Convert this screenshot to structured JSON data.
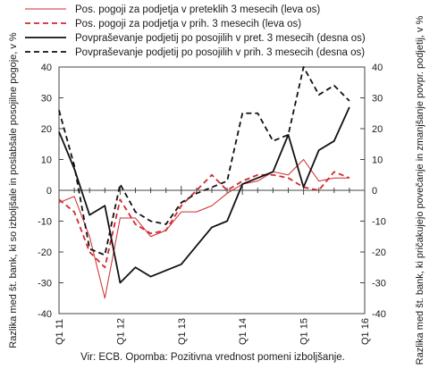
{
  "chart_data": {
    "type": "line",
    "title": "",
    "x": [
      "2011Q1",
      "2011Q2",
      "2011Q3",
      "2011Q4",
      "2012Q1",
      "2012Q2",
      "2012Q3",
      "2012Q4",
      "2013Q1",
      "2013Q2",
      "2013Q3",
      "2013Q4",
      "2014Q1",
      "2014Q2",
      "2014Q3",
      "2014Q4",
      "2015Q1",
      "2015Q2",
      "2015Q3",
      "2015Q4",
      "2016Q1"
    ],
    "x_tick_labels": [
      "Q1 11",
      "Q1 12",
      "Q1 13",
      "Q1 14",
      "Q1 15",
      "Q1 16"
    ],
    "ylabel_left": "Razlika med št. bank, ki so izboljšale in poslabšale posojilne pogoje, v %",
    "ylabel_right": "Razlika med št. bank, ki pričakujejo povečanje in zmanjšanje povpr. podjetij, v %",
    "ylim_left": [
      -40,
      40
    ],
    "ylim_right": [
      -40,
      40
    ],
    "y_ticks_left": [
      "40",
      "30",
      "20",
      "10",
      "0",
      "-10",
      "-20",
      "-30",
      "-40"
    ],
    "y_ticks_right": [
      "40",
      "30",
      "20",
      "10",
      "0",
      "-10",
      "-20",
      "-30",
      "-40"
    ],
    "grid": false,
    "legend_position": "top",
    "series": [
      {
        "name": "Pos. pogoji za podjetja v preteklih 3 mesecih (leva os)",
        "axis": "left",
        "color": "#d1292f",
        "style": "solid",
        "width": "thin",
        "values": [
          -4,
          -2,
          -15,
          -35,
          -9,
          -9,
          -15,
          -13,
          -7,
          -7,
          -5,
          -1,
          2,
          3,
          6,
          5,
          10,
          3,
          4,
          4,
          null
        ]
      },
      {
        "name": "Pos. pogoji za podjetja v prih. 3 mesecih (leva os)",
        "axis": "left",
        "color": "#d1292f",
        "style": "dashed",
        "width": "thick",
        "values": [
          -3,
          -7,
          -20,
          -25,
          -3,
          -11,
          -14,
          -13,
          -5,
          0,
          5,
          0,
          3,
          5,
          5,
          4,
          1,
          0,
          6,
          4,
          null
        ]
      },
      {
        "name": "Povpraševanje podjetij po posojilih v pret. 3 mesecih (desna os)",
        "axis": "right",
        "color": "#111111",
        "style": "solid",
        "width": "thick",
        "values": [
          19,
          7,
          -8,
          -5,
          -30,
          -25,
          -28,
          -26,
          -24,
          -18,
          -12,
          -10,
          2,
          4,
          6,
          18,
          1,
          13,
          16,
          27,
          null
        ]
      },
      {
        "name": "Povpraševanje podjetij po posojilih v prih. 3 mesecih (desna os)",
        "axis": "right",
        "color": "#111111",
        "style": "dashed",
        "width": "thick",
        "values": [
          26,
          8,
          -19,
          -21,
          2,
          -7,
          -10,
          -11,
          -4,
          -1,
          1,
          3,
          25,
          25,
          16,
          18,
          40,
          31,
          34,
          29,
          null
        ]
      }
    ]
  },
  "footer": {
    "source": "Vir: ECB. Opomba: Pozitivna vrednost pomeni izboljšanje."
  }
}
